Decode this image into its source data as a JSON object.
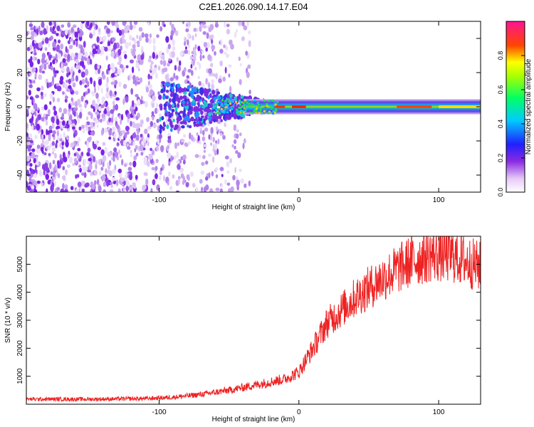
{
  "title": "C2E1.2026.090.14.17.E04",
  "chart_data": [
    {
      "type": "heatmap",
      "name": "spectrogram",
      "xlabel": "Height of straight line (km)",
      "ylabel": "Frequency (Hz)",
      "xlim": [
        -195,
        130
      ],
      "ylim": [
        -50,
        50
      ],
      "x_ticks": [
        -100,
        0,
        100
      ],
      "x_tick_labels": [
        "-100",
        "0",
        "100"
      ],
      "y_ticks": [
        -40,
        -20,
        0,
        20,
        40
      ],
      "y_tick_labels": [
        "-40",
        "-20",
        "0",
        "20",
        "40"
      ],
      "colorbar": {
        "label": "Normalized spectral amplitude",
        "range": [
          0,
          1
        ],
        "ticks": [
          0.0,
          0.2,
          0.4,
          0.6,
          0.8
        ],
        "tick_labels": [
          "0.0",
          "0.2",
          "0.4",
          "0.6",
          "0.8"
        ],
        "colormap": "rainbow (white - violet - blue - cyan - green - yellow - red - magenta)"
      },
      "features": [
        {
          "description": "broadband noise",
          "x_range": [
            -195,
            -35
          ],
          "freq_range": [
            -50,
            50
          ],
          "amplitude": "0.0-0.1"
        },
        {
          "description": "narrowband signal near 0 Hz",
          "x_range": [
            -60,
            130
          ],
          "freq_center": 0,
          "freq_halfwidth": 3,
          "peak_amplitude": 1.0
        }
      ]
    },
    {
      "type": "line",
      "name": "snr",
      "xlabel": "Height of straight line (km)",
      "ylabel": "SNR (10 * v/v)",
      "xlim": [
        -195,
        130
      ],
      "ylim": [
        0,
        6000
      ],
      "x_ticks": [
        -100,
        0,
        100
      ],
      "x_tick_labels": [
        "-100",
        "0",
        "100"
      ],
      "y_ticks": [
        1000,
        2000,
        3000,
        4000,
        5000
      ],
      "y_tick_labels": [
        "1000",
        "2000",
        "3000",
        "4000",
        "5000"
      ],
      "color": "#ee2222",
      "series": [
        {
          "name": "SNR trend",
          "x": [
            -195,
            -150,
            -110,
            -90,
            -70,
            -50,
            -30,
            -10,
            0,
            10,
            20,
            40,
            60,
            80,
            95,
            110,
            130
          ],
          "values": [
            180,
            180,
            200,
            250,
            350,
            500,
            700,
            900,
            1150,
            2000,
            2900,
            3800,
            4500,
            5100,
            5350,
            5300,
            4900
          ]
        }
      ]
    }
  ]
}
